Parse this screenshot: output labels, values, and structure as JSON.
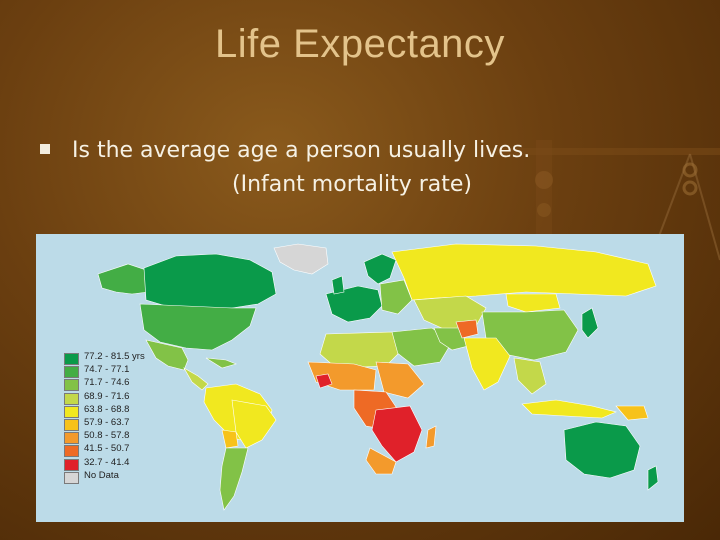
{
  "slide": {
    "title": "Life Expectancy",
    "bullet_line1": "Is the average age a person usually lives.",
    "bullet_line2": "(Infant mortality rate)"
  },
  "map": {
    "legend": [
      {
        "label": "77.2 - 81.5 yrs",
        "color": "#0a9a4a"
      },
      {
        "label": "74.7 - 77.1",
        "color": "#43ad45"
      },
      {
        "label": "71.7 - 74.6",
        "color": "#82c247"
      },
      {
        "label": "68.9 - 71.6",
        "color": "#c3d84a"
      },
      {
        "label": "63.8 - 68.8",
        "color": "#f1e81f"
      },
      {
        "label": "57.9 - 63.7",
        "color": "#f7c21a"
      },
      {
        "label": "50.8 - 57.8",
        "color": "#f39a2c"
      },
      {
        "label": "41.5 - 50.7",
        "color": "#ee6a25"
      },
      {
        "label": "32.7 - 41.4",
        "color": "#e0212a"
      },
      {
        "label": "No Data",
        "color": "#d6d6d6"
      }
    ],
    "ocean_color": "#bcdbe8"
  }
}
